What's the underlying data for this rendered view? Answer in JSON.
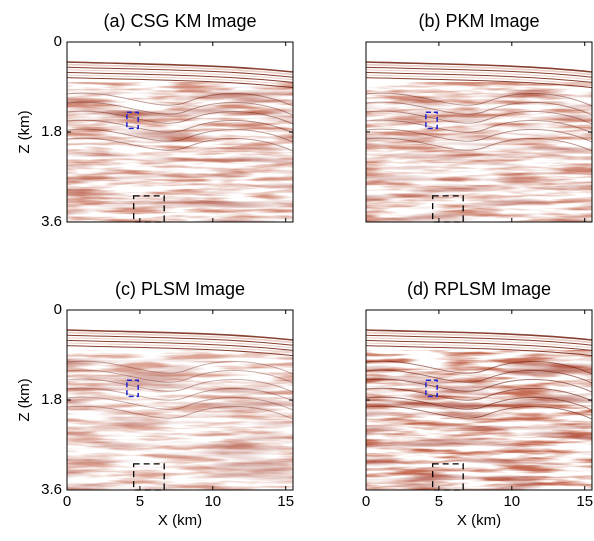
{
  "chart_data": [
    {
      "type": "image",
      "title": "(a) CSG KM Image",
      "ylabel": "Z (km)",
      "xlim": [
        0,
        15.5
      ],
      "ylim": [
        3.6,
        0
      ],
      "xticks": [
        0,
        5,
        10,
        15
      ],
      "yticks": [
        0,
        1.8,
        3.6
      ],
      "show_xtick_labels": false,
      "show_ytick_labels": true,
      "intensity": 1.0
    },
    {
      "type": "image",
      "title": "(b) PKM Image",
      "xlim": [
        0,
        15.5
      ],
      "ylim": [
        3.6,
        0
      ],
      "xticks": [
        0,
        5,
        10,
        15
      ],
      "yticks": [
        0,
        1.8,
        3.6
      ],
      "show_xtick_labels": false,
      "show_ytick_labels": false,
      "intensity": 1.0
    },
    {
      "type": "image",
      "title": "(c) PLSM Image",
      "xlabel": "X (km)",
      "ylabel": "Z (km)",
      "xlim": [
        0,
        15.5
      ],
      "ylim": [
        3.6,
        0
      ],
      "xticks": [
        0,
        5,
        10,
        15
      ],
      "yticks": [
        0,
        1.8,
        3.6
      ],
      "show_xtick_labels": true,
      "show_ytick_labels": true,
      "intensity": 0.8
    },
    {
      "type": "image",
      "title": "(d) RPLSM Image",
      "xlabel": "X (km)",
      "xlim": [
        0,
        15.5
      ],
      "ylim": [
        3.6,
        0
      ],
      "xticks": [
        0,
        5,
        10,
        15
      ],
      "yticks": [
        0,
        1.8,
        3.6
      ],
      "show_xtick_labels": true,
      "show_ytick_labels": false,
      "intensity": 1.3
    }
  ]
}
